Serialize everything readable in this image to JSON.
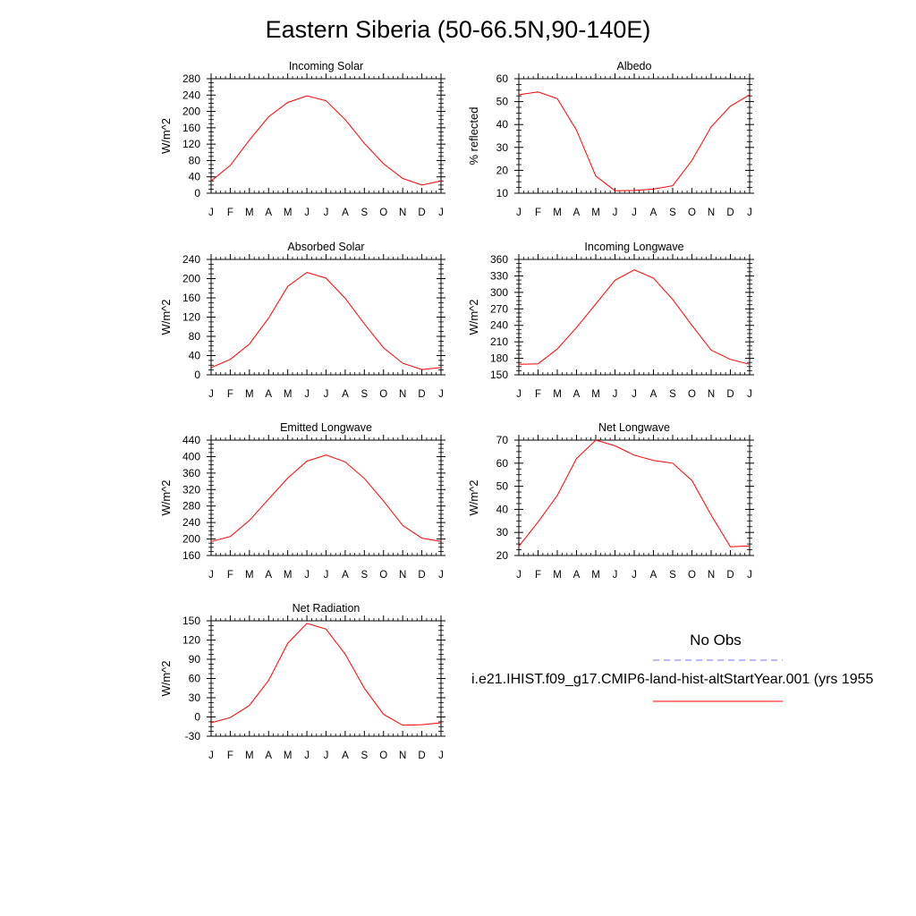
{
  "title": "Eastern Siberia (50-66.5N,90-140E)",
  "legend": {
    "obs_label": "No Obs",
    "obs_color": "#7777ee",
    "model_label": "i.e21.IHIST.f09_g17.CMIP6-land-hist-altStartYear.001 (yrs 1955",
    "model_color": "#ff0000"
  },
  "chart_data": [
    {
      "type": "line",
      "title": "Incoming Solar",
      "ylabel": "W/m^2",
      "categories": [
        "J",
        "F",
        "M",
        "A",
        "M",
        "J",
        "J",
        "A",
        "S",
        "O",
        "N",
        "D",
        "J"
      ],
      "ylim": [
        0,
        280
      ],
      "yticks": [
        0,
        40,
        80,
        120,
        160,
        200,
        240,
        280
      ],
      "series": [
        {
          "values": [
            30,
            68,
            130,
            187,
            222,
            238,
            226,
            180,
            122,
            72,
            36,
            20,
            30
          ]
        }
      ]
    },
    {
      "type": "line",
      "title": "Albedo",
      "ylabel": "% reflected",
      "categories": [
        "J",
        "F",
        "M",
        "A",
        "M",
        "J",
        "J",
        "A",
        "S",
        "O",
        "N",
        "D",
        "J"
      ],
      "ylim": [
        10,
        60
      ],
      "yticks": [
        10,
        20,
        30,
        40,
        50,
        60
      ],
      "series": [
        {
          "values": [
            53,
            54.2,
            51.3,
            37.5,
            17.5,
            11.1,
            11.2,
            11.8,
            13.3,
            24.3,
            39,
            48,
            53
          ]
        }
      ]
    },
    {
      "type": "line",
      "title": "Absorbed Solar",
      "ylabel": "W/m^2",
      "categories": [
        "J",
        "F",
        "M",
        "A",
        "M",
        "J",
        "J",
        "A",
        "S",
        "O",
        "N",
        "D",
        "J"
      ],
      "ylim": [
        0,
        240
      ],
      "yticks": [
        0,
        40,
        80,
        120,
        160,
        200,
        240
      ],
      "series": [
        {
          "values": [
            15,
            32,
            64,
            118,
            184,
            213,
            201,
            159,
            106,
            56,
            24,
            11,
            15
          ]
        }
      ]
    },
    {
      "type": "line",
      "title": "Incoming Longwave",
      "ylabel": "W/m^2",
      "categories": [
        "J",
        "F",
        "M",
        "A",
        "M",
        "J",
        "J",
        "A",
        "S",
        "O",
        "N",
        "D",
        "J"
      ],
      "ylim": [
        150,
        360
      ],
      "yticks": [
        150,
        180,
        210,
        240,
        270,
        300,
        330,
        360
      ],
      "series": [
        {
          "values": [
            169,
            170,
            197,
            236,
            279,
            322,
            341,
            326,
            287,
            240,
            195,
            178,
            169
          ]
        }
      ]
    },
    {
      "type": "line",
      "title": "Emitted Longwave",
      "ylabel": "W/m^2",
      "categories": [
        "J",
        "F",
        "M",
        "A",
        "M",
        "J",
        "J",
        "A",
        "S",
        "O",
        "N",
        "D",
        "J"
      ],
      "ylim": [
        160,
        440
      ],
      "yticks": [
        160,
        200,
        240,
        280,
        320,
        360,
        400,
        440
      ],
      "series": [
        {
          "values": [
            194,
            206,
            245,
            297,
            348,
            389,
            404,
            387,
            347,
            292,
            233,
            202,
            194
          ]
        }
      ]
    },
    {
      "type": "line",
      "title": "Net Longwave",
      "ylabel": "W/m^2",
      "categories": [
        "J",
        "F",
        "M",
        "A",
        "M",
        "J",
        "J",
        "A",
        "S",
        "O",
        "N",
        "D",
        "J"
      ],
      "ylim": [
        20,
        70
      ],
      "yticks": [
        20,
        30,
        40,
        50,
        60,
        70
      ],
      "series": [
        {
          "values": [
            24,
            34.5,
            46,
            62,
            70,
            67.5,
            63.5,
            61.2,
            60,
            52.5,
            37.5,
            23.8,
            24.2
          ]
        }
      ]
    },
    {
      "type": "line",
      "title": "Net Radiation",
      "ylabel": "W/m^2",
      "categories": [
        "J",
        "F",
        "M",
        "A",
        "M",
        "J",
        "J",
        "A",
        "S",
        "O",
        "N",
        "D",
        "J"
      ],
      "ylim": [
        -30,
        150
      ],
      "yticks": [
        -30,
        0,
        30,
        60,
        90,
        120,
        150
      ],
      "series": [
        {
          "values": [
            -9,
            -1,
            18,
            57,
            115,
            146,
            137,
            98,
            45,
            4,
            -13,
            -12,
            -9
          ]
        }
      ]
    }
  ]
}
